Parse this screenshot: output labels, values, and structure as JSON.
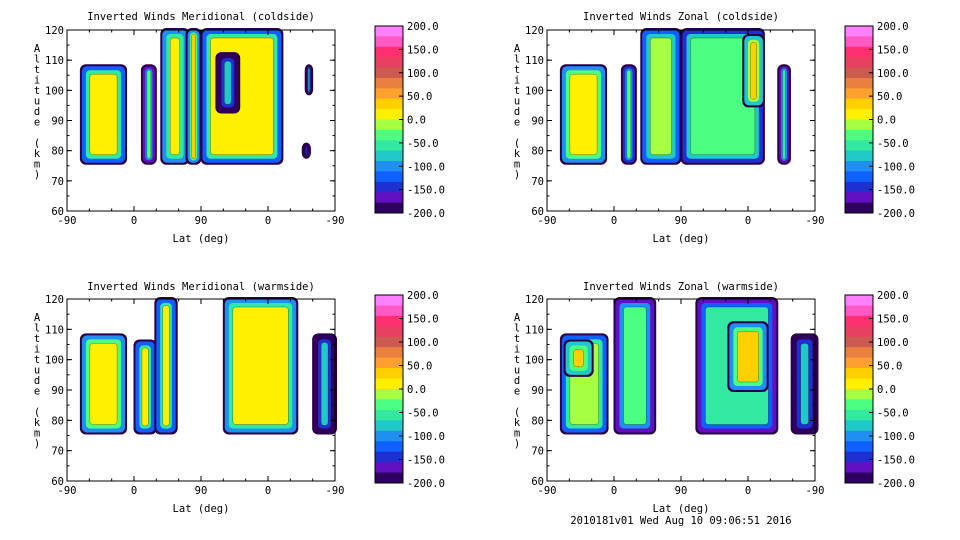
{
  "chart_data": [
    {
      "type": "heatmap",
      "title": "Inverted Winds Meridional (coldside)",
      "xlabel": "Lat (deg)",
      "ylabel": "Altitude (km)",
      "xticks": [
        "-90",
        "0",
        "90",
        "0",
        "-90"
      ],
      "ylim": [
        60,
        120
      ],
      "yticks": [
        "60",
        "70",
        "80",
        "90",
        "100",
        "110",
        "120"
      ],
      "blocks": [
        {
          "lat": [
            -70,
            -12
          ],
          "alt": [
            76,
            108
          ],
          "value": 8
        },
        {
          "lat": [
            12,
            28
          ],
          "alt": [
            76,
            108
          ],
          "value": -40
        },
        {
          "lat": [
            38,
            72
          ],
          "alt": [
            76,
            120
          ],
          "value": 12
        },
        {
          "lat": [
            72,
            88
          ],
          "alt": [
            76,
            120
          ],
          "value": 28
        },
        {
          "lat": [
            92,
            198
          ],
          "alt": [
            76,
            120
          ],
          "value": 2
        },
        {
          "lat": [
            112,
            140
          ],
          "alt": [
            93,
            112
          ],
          "value": -82
        },
        {
          "lat": [
            232,
            238
          ],
          "alt": [
            99,
            108
          ],
          "value": -70
        },
        {
          "lat": [
            228,
            235
          ],
          "alt": [
            78,
            82
          ],
          "value": -150
        }
      ]
    },
    {
      "type": "heatmap",
      "title": "Inverted Winds Zonal (coldside)",
      "xlabel": "Lat (deg)",
      "ylabel": "Altitude (km)",
      "xticks": [
        "-90",
        "0",
        "90",
        "0",
        "-90"
      ],
      "ylim": [
        60,
        120
      ],
      "yticks": [
        "60",
        "70",
        "80",
        "90",
        "100",
        "110",
        "120"
      ],
      "blocks": [
        {
          "lat": [
            -70,
            -12
          ],
          "alt": [
            76,
            108
          ],
          "value": 20
        },
        {
          "lat": [
            12,
            28
          ],
          "alt": [
            76,
            108
          ],
          "value": -30
        },
        {
          "lat": [
            38,
            88
          ],
          "alt": [
            76,
            120
          ],
          "value": -10
        },
        {
          "lat": [
            92,
            200
          ],
          "alt": [
            76,
            120
          ],
          "value": -28
        },
        {
          "lat": [
            175,
            200
          ],
          "alt": [
            95,
            118
          ],
          "value": 38
        },
        {
          "lat": [
            222,
            235
          ],
          "alt": [
            76,
            108
          ],
          "value": -48
        }
      ]
    },
    {
      "type": "heatmap",
      "title": "Inverted Winds Meridional (warmside)",
      "xlabel": "Lat (deg)",
      "ylabel": "Altitude (km)",
      "xticks": [
        "-90",
        "0",
        "90",
        "0",
        "-90"
      ],
      "ylim": [
        60,
        120
      ],
      "yticks": [
        "60",
        "70",
        "80",
        "90",
        "100",
        "110",
        "120"
      ],
      "blocks": [
        {
          "lat": [
            -70,
            -12
          ],
          "alt": [
            76,
            108
          ],
          "value": 22
        },
        {
          "lat": [
            2,
            28
          ],
          "alt": [
            76,
            106
          ],
          "value": 8
        },
        {
          "lat": [
            30,
            56
          ],
          "alt": [
            76,
            120
          ],
          "value": 2
        },
        {
          "lat": [
            122,
            218
          ],
          "alt": [
            76,
            120
          ],
          "value": 10
        },
        {
          "lat": [
            242,
            270
          ],
          "alt": [
            76,
            108
          ],
          "value": -85
        }
      ]
    },
    {
      "type": "heatmap",
      "title": "Inverted Winds Zonal (warmside)",
      "xlabel": "Lat (deg)",
      "ylabel": "Altitude (km)",
      "xticks": [
        "-90",
        "0",
        "90",
        "0",
        "-90"
      ],
      "ylim": [
        60,
        120
      ],
      "yticks": [
        "60",
        "70",
        "80",
        "90",
        "100",
        "110",
        "120"
      ],
      "blocks": [
        {
          "lat": [
            -70,
            -10
          ],
          "alt": [
            76,
            108
          ],
          "value": 0
        },
        {
          "lat": [
            -65,
            -30
          ],
          "alt": [
            95,
            106
          ],
          "value": 35
        },
        {
          "lat": [
            2,
            54
          ],
          "alt": [
            76,
            120
          ],
          "value": -40
        },
        {
          "lat": [
            112,
            218
          ],
          "alt": [
            76,
            120
          ],
          "value": -55
        },
        {
          "lat": [
            155,
            205
          ],
          "alt": [
            90,
            112
          ],
          "value": 28
        },
        {
          "lat": [
            240,
            272
          ],
          "alt": [
            76,
            108
          ],
          "value": -75
        }
      ]
    }
  ],
  "colorbar": {
    "labels": [
      "200.0",
      "150.0",
      "100.0",
      "50.0",
      "0.0",
      "-50.0",
      "-100.0",
      "-150.0",
      "-200.0"
    ],
    "colors": [
      "#ff80ff",
      "#ff59c6",
      "#ff2f70",
      "#e84060",
      "#cc5a50",
      "#e88040",
      "#ffa030",
      "#ffd000",
      "#fff000",
      "#a6ff40",
      "#4dff80",
      "#33e8a0",
      "#20c8c8",
      "#2090f0",
      "#1060ff",
      "#2030d0",
      "#6010c0",
      "#300060"
    ]
  },
  "footer": "2010181v01 Wed Aug 10 09:06:51 2016"
}
